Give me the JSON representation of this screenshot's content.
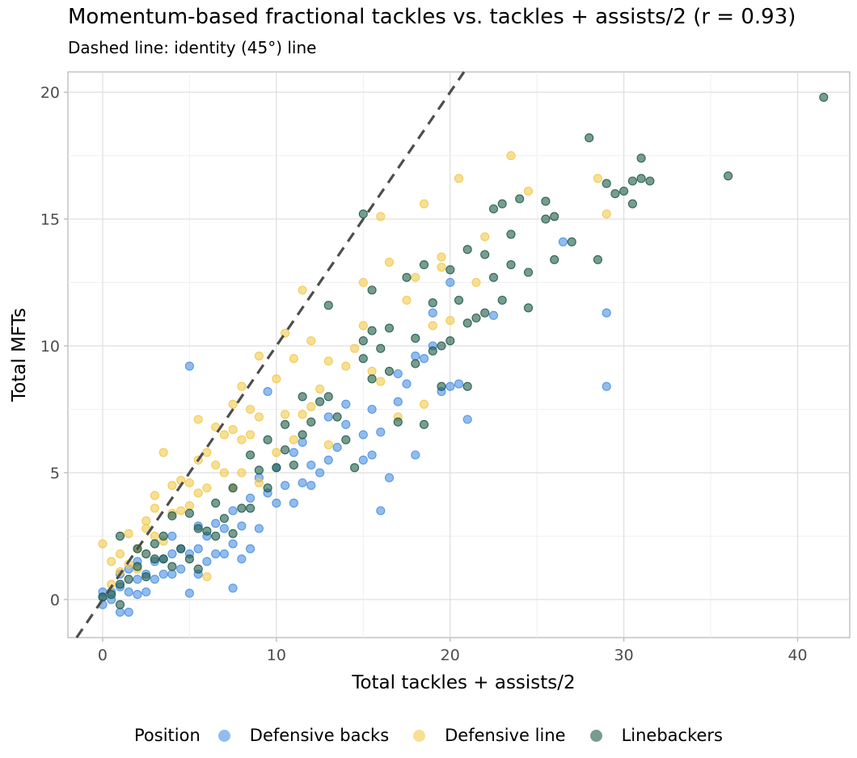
{
  "chart_data": {
    "type": "scatter",
    "title": "Momentum-based fractional tackles vs. tackles + assists/2 (r = 0.93)",
    "subtitle": "Dashed line: identity (45°) line",
    "xlabel": "Total tackles + assists/2",
    "ylabel": "Total MFTs",
    "xlim": [
      -2,
      43
    ],
    "ylim": [
      -1.5,
      20.8
    ],
    "xticks": [
      0,
      10,
      20,
      30,
      40
    ],
    "yticks": [
      0,
      5,
      10,
      15,
      20
    ],
    "grid": true,
    "legend_position": "bottom",
    "legend_title": "Position",
    "reference_line": {
      "type": "identity",
      "style": "dashed",
      "color": "#4d4d4d"
    },
    "point_alpha": 0.6,
    "series": [
      {
        "name": "Defensive backs",
        "color": "#4a90e2",
        "points": [
          [
            0,
            -0.2
          ],
          [
            0,
            0.1
          ],
          [
            0,
            0.3
          ],
          [
            0.5,
            0
          ],
          [
            0.5,
            0.3
          ],
          [
            1,
            -0.5
          ],
          [
            1,
            0.5
          ],
          [
            1,
            1
          ],
          [
            1.5,
            -0.5
          ],
          [
            1.5,
            0.3
          ],
          [
            1.5,
            1.2
          ],
          [
            2,
            0.2
          ],
          [
            2,
            0.8
          ],
          [
            2,
            1.5
          ],
          [
            2.5,
            0.3
          ],
          [
            2.5,
            1
          ],
          [
            3,
            0.8
          ],
          [
            3,
            1.5
          ],
          [
            3.5,
            1
          ],
          [
            3.5,
            1.6
          ],
          [
            4,
            1
          ],
          [
            4,
            1.8
          ],
          [
            4,
            2.5
          ],
          [
            4.5,
            1.2
          ],
          [
            4.5,
            2
          ],
          [
            5,
            0.25
          ],
          [
            5,
            1.8
          ],
          [
            5,
            9.2
          ],
          [
            5.5,
            1
          ],
          [
            5.5,
            2
          ],
          [
            5.5,
            2.9
          ],
          [
            6,
            1.5
          ],
          [
            6,
            2.5
          ],
          [
            6.5,
            1.8
          ],
          [
            6.5,
            3
          ],
          [
            7,
            1.8
          ],
          [
            7,
            2.8
          ],
          [
            7.5,
            0.45
          ],
          [
            7.5,
            2.2
          ],
          [
            7.5,
            3.5
          ],
          [
            8,
            1.6
          ],
          [
            8,
            2.9
          ],
          [
            8.5,
            2
          ],
          [
            8.5,
            4
          ],
          [
            9,
            2.8
          ],
          [
            9,
            4.8
          ],
          [
            9.5,
            8.2
          ],
          [
            9.5,
            4.2
          ],
          [
            10,
            3.8
          ],
          [
            10,
            5.2
          ],
          [
            10.5,
            4.5
          ],
          [
            11,
            3.8
          ],
          [
            11,
            5.8
          ],
          [
            11.5,
            4.6
          ],
          [
            11.5,
            6.2
          ],
          [
            12,
            4.5
          ],
          [
            12,
            5.3
          ],
          [
            12.5,
            5
          ],
          [
            13,
            5.5
          ],
          [
            13,
            7.2
          ],
          [
            13.5,
            6
          ],
          [
            14,
            6.9
          ],
          [
            14,
            7.7
          ],
          [
            15,
            5.5
          ],
          [
            15,
            6.5
          ],
          [
            15.5,
            5.7
          ],
          [
            15.5,
            7.5
          ],
          [
            16,
            3.5
          ],
          [
            16,
            6.6
          ],
          [
            16.5,
            4.8
          ],
          [
            17,
            7.8
          ],
          [
            17,
            8.9
          ],
          [
            17.5,
            8.5
          ],
          [
            18,
            5.7
          ],
          [
            18,
            9.6
          ],
          [
            18.5,
            9.5
          ],
          [
            19,
            10
          ],
          [
            19,
            11.3
          ],
          [
            19.5,
            8.2
          ],
          [
            20,
            12.5
          ],
          [
            20,
            8.4
          ],
          [
            20.5,
            8.5
          ],
          [
            21,
            7.1
          ],
          [
            22.5,
            11.2
          ],
          [
            26.5,
            14.1
          ],
          [
            29,
            11.3
          ],
          [
            29,
            8.4
          ]
        ]
      },
      {
        "name": "Defensive line",
        "color": "#f2c94c",
        "points": [
          [
            0,
            2.2
          ],
          [
            0.5,
            0.6
          ],
          [
            0.5,
            1.5
          ],
          [
            1,
            1.1
          ],
          [
            1,
            1.8
          ],
          [
            1.5,
            1.4
          ],
          [
            1.5,
            2.6
          ],
          [
            2,
            1.2
          ],
          [
            2,
            2
          ],
          [
            2.5,
            2.8
          ],
          [
            2.5,
            3.1
          ],
          [
            3,
            2.5
          ],
          [
            3,
            3.6
          ],
          [
            3,
            4.1
          ],
          [
            3.5,
            2.3
          ],
          [
            3.5,
            5.8
          ],
          [
            4,
            3.4
          ],
          [
            4,
            4.5
          ],
          [
            4.5,
            3.5
          ],
          [
            4.5,
            4.7
          ],
          [
            5,
            3.7
          ],
          [
            5,
            4.6
          ],
          [
            5.5,
            4.2
          ],
          [
            5.5,
            5.5
          ],
          [
            5.5,
            7.1
          ],
          [
            6,
            0.9
          ],
          [
            6,
            4.4
          ],
          [
            6,
            5.8
          ],
          [
            6.5,
            5.3
          ],
          [
            6.5,
            6.8
          ],
          [
            7,
            5
          ],
          [
            7,
            6.5
          ],
          [
            7.5,
            4.4
          ],
          [
            7.5,
            6.7
          ],
          [
            7.5,
            7.7
          ],
          [
            8,
            5
          ],
          [
            8,
            6.3
          ],
          [
            8,
            8.4
          ],
          [
            8.5,
            6.5
          ],
          [
            8.5,
            7.5
          ],
          [
            9,
            4.6
          ],
          [
            9,
            7.2
          ],
          [
            9,
            9.6
          ],
          [
            10,
            5.8
          ],
          [
            10,
            8.7
          ],
          [
            10.5,
            7.3
          ],
          [
            10.5,
            10.5
          ],
          [
            11,
            6.3
          ],
          [
            11,
            9.5
          ],
          [
            11.5,
            7.3
          ],
          [
            11.5,
            12.2
          ],
          [
            12,
            7.6
          ],
          [
            12,
            10.2
          ],
          [
            12.5,
            8.3
          ],
          [
            13,
            6.1
          ],
          [
            13,
            9.4
          ],
          [
            14,
            9.2
          ],
          [
            14.5,
            9.9
          ],
          [
            15,
            10.8
          ],
          [
            15,
            12.5
          ],
          [
            15.5,
            9
          ],
          [
            16,
            15.1
          ],
          [
            16,
            8.6
          ],
          [
            16.5,
            13.3
          ],
          [
            17,
            7.2
          ],
          [
            17.5,
            11.8
          ],
          [
            18,
            12.7
          ],
          [
            18.5,
            15.6
          ],
          [
            18.5,
            7.7
          ],
          [
            19,
            10.8
          ],
          [
            19.5,
            13.1
          ],
          [
            19.5,
            13.5
          ],
          [
            20,
            11
          ],
          [
            20.5,
            16.6
          ],
          [
            21.5,
            12.5
          ],
          [
            22,
            14.3
          ],
          [
            23.5,
            17.5
          ],
          [
            24.5,
            16.1
          ],
          [
            28.5,
            16.6
          ],
          [
            29,
            15.2
          ]
        ]
      },
      {
        "name": "Linebackers",
        "color": "#1e5a48",
        "points": [
          [
            0,
            0.1
          ],
          [
            0.5,
            0.2
          ],
          [
            1,
            -0.2
          ],
          [
            1,
            0.6
          ],
          [
            1,
            2.5
          ],
          [
            1.5,
            0.8
          ],
          [
            2,
            1.3
          ],
          [
            2,
            2
          ],
          [
            2.5,
            0.9
          ],
          [
            2.5,
            1.8
          ],
          [
            3,
            1.6
          ],
          [
            3,
            2.2
          ],
          [
            3.5,
            1.6
          ],
          [
            3.5,
            2.5
          ],
          [
            4,
            1.3
          ],
          [
            4,
            3.3
          ],
          [
            4.5,
            2
          ],
          [
            5,
            1.6
          ],
          [
            5,
            3.4
          ],
          [
            5.5,
            1.2
          ],
          [
            5.5,
            2.8
          ],
          [
            6,
            2.7
          ],
          [
            6.5,
            2.5
          ],
          [
            6.5,
            3.8
          ],
          [
            7,
            3.2
          ],
          [
            7.5,
            2.6
          ],
          [
            7.5,
            4.4
          ],
          [
            8,
            3.6
          ],
          [
            8.5,
            3.6
          ],
          [
            8.5,
            5.7
          ],
          [
            9,
            5.1
          ],
          [
            9.5,
            4.4
          ],
          [
            9.5,
            6.3
          ],
          [
            10,
            5.2
          ],
          [
            10.5,
            5.9
          ],
          [
            10.5,
            6.9
          ],
          [
            11,
            5.3
          ],
          [
            11.5,
            6.5
          ],
          [
            11.5,
            8
          ],
          [
            12,
            7
          ],
          [
            12.5,
            7.8
          ],
          [
            13,
            8
          ],
          [
            13,
            11.6
          ],
          [
            13.5,
            7.2
          ],
          [
            14,
            6.3
          ],
          [
            14.5,
            5.2
          ],
          [
            15,
            9.5
          ],
          [
            15,
            10.2
          ],
          [
            15,
            15.2
          ],
          [
            15.5,
            8.7
          ],
          [
            15.5,
            10.6
          ],
          [
            15.5,
            12.2
          ],
          [
            16,
            9.9
          ],
          [
            16.5,
            10.7
          ],
          [
            16.5,
            9
          ],
          [
            17,
            7
          ],
          [
            17.5,
            12.7
          ],
          [
            18,
            10.3
          ],
          [
            18,
            9.3
          ],
          [
            18.5,
            6.9
          ],
          [
            18.5,
            13.2
          ],
          [
            19,
            11.7
          ],
          [
            19,
            9.8
          ],
          [
            19.5,
            8.4
          ],
          [
            19.5,
            10
          ],
          [
            20,
            10.2
          ],
          [
            20,
            13
          ],
          [
            20.5,
            11.8
          ],
          [
            21,
            10.9
          ],
          [
            21,
            8.4
          ],
          [
            21,
            13.8
          ],
          [
            21.5,
            11.1
          ],
          [
            22,
            11.3
          ],
          [
            22,
            13.6
          ],
          [
            22.5,
            15.4
          ],
          [
            22.5,
            12.7
          ],
          [
            23,
            15.6
          ],
          [
            23,
            11.8
          ],
          [
            23.5,
            14.4
          ],
          [
            23.5,
            13.2
          ],
          [
            24,
            15.8
          ],
          [
            24.5,
            12.9
          ],
          [
            24.5,
            11.5
          ],
          [
            25.5,
            15.7
          ],
          [
            25.5,
            15
          ],
          [
            26,
            13.4
          ],
          [
            26,
            15.1
          ],
          [
            27,
            14.1
          ],
          [
            28,
            18.2
          ],
          [
            28.5,
            13.4
          ],
          [
            29,
            16.4
          ],
          [
            29.5,
            16
          ],
          [
            30,
            16.1
          ],
          [
            30.5,
            15.6
          ],
          [
            30.5,
            16.5
          ],
          [
            31,
            17.4
          ],
          [
            31,
            16.6
          ],
          [
            31.5,
            16.5
          ],
          [
            36,
            16.7
          ],
          [
            41.5,
            19.8
          ]
        ]
      }
    ]
  }
}
